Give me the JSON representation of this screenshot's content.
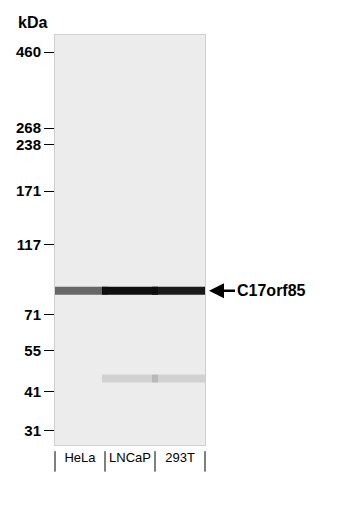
{
  "chart_data": {
    "type": "blot",
    "ylabel": "kDa",
    "categories": [
      "HeLa",
      "LNCaP",
      "293T"
    ],
    "log": "y",
    "ylim": [
      28,
      520
    ],
    "yticks": [
      460,
      268,
      238,
      171,
      117,
      71,
      55,
      41,
      31
    ],
    "bands": [
      {
        "name": "C17orf85",
        "values": [
          84,
          84,
          84
        ],
        "intensity": [
          0.6,
          1,
          0.95
        ]
      },
      {
        "values": [
          null,
          45,
          45
        ],
        "intensity": [
          null,
          0.12,
          0.12
        ]
      }
    ]
  }
}
